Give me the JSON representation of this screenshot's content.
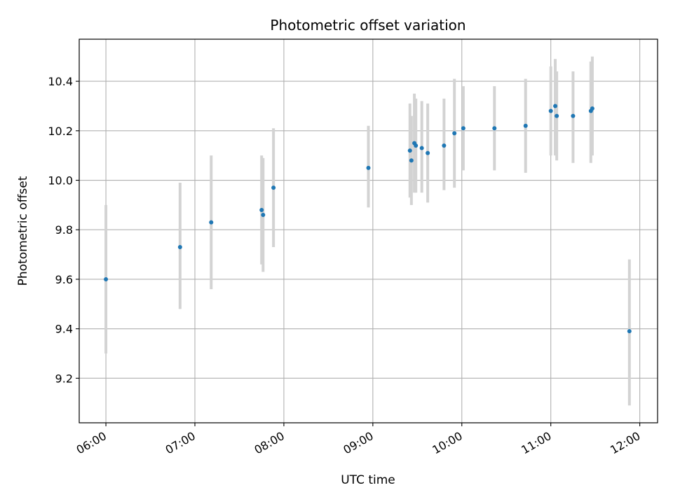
{
  "chart_data": {
    "type": "scatter",
    "title": "Photometric offset variation",
    "xlabel": "UTC time",
    "ylabel": "Photometric offset",
    "xlim": [
      "05:42",
      "12:12"
    ],
    "ylim": [
      9.02,
      10.57
    ],
    "x_ticks": [
      "06:00",
      "07:00",
      "08:00",
      "09:00",
      "10:00",
      "11:00",
      "12:00"
    ],
    "y_ticks": [
      9.2,
      9.4,
      9.6,
      9.8,
      10.0,
      10.2,
      10.4
    ],
    "grid": true,
    "colors": {
      "point": "#1f77b4",
      "errorbar": "#d3d3d3",
      "grid": "#b0b0b0"
    },
    "points": [
      {
        "x": "06:00",
        "y": 9.6,
        "err_low": 9.3,
        "err_high": 9.9
      },
      {
        "x": "06:50",
        "y": 9.73,
        "err_low": 9.48,
        "err_high": 9.99
      },
      {
        "x": "07:11",
        "y": 9.83,
        "err_low": 9.56,
        "err_high": 10.1
      },
      {
        "x": "07:45",
        "y": 9.88,
        "err_low": 9.66,
        "err_high": 10.1
      },
      {
        "x": "07:46",
        "y": 9.86,
        "err_low": 9.63,
        "err_high": 10.09
      },
      {
        "x": "07:53",
        "y": 9.97,
        "err_low": 9.73,
        "err_high": 10.21
      },
      {
        "x": "08:57",
        "y": 10.05,
        "err_low": 9.89,
        "err_high": 10.22
      },
      {
        "x": "09:25",
        "y": 10.12,
        "err_low": 9.93,
        "err_high": 10.31
      },
      {
        "x": "09:26",
        "y": 10.08,
        "err_low": 9.9,
        "err_high": 10.26
      },
      {
        "x": "09:28",
        "y": 10.15,
        "err_low": 9.95,
        "err_high": 10.35
      },
      {
        "x": "09:29",
        "y": 10.14,
        "err_low": 9.95,
        "err_high": 10.33
      },
      {
        "x": "09:33",
        "y": 10.13,
        "err_low": 9.95,
        "err_high": 10.32
      },
      {
        "x": "09:37",
        "y": 10.11,
        "err_low": 9.91,
        "err_high": 10.31
      },
      {
        "x": "09:48",
        "y": 10.14,
        "err_low": 9.96,
        "err_high": 10.33
      },
      {
        "x": "09:55",
        "y": 10.19,
        "err_low": 9.97,
        "err_high": 10.41
      },
      {
        "x": "10:01",
        "y": 10.21,
        "err_low": 10.04,
        "err_high": 10.38
      },
      {
        "x": "10:22",
        "y": 10.21,
        "err_low": 10.04,
        "err_high": 10.38
      },
      {
        "x": "10:43",
        "y": 10.22,
        "err_low": 10.03,
        "err_high": 10.41
      },
      {
        "x": "11:00",
        "y": 10.28,
        "err_low": 10.1,
        "err_high": 10.46
      },
      {
        "x": "11:03",
        "y": 10.3,
        "err_low": 10.1,
        "err_high": 10.49
      },
      {
        "x": "11:04",
        "y": 10.26,
        "err_low": 10.08,
        "err_high": 10.44
      },
      {
        "x": "11:15",
        "y": 10.26,
        "err_low": 10.07,
        "err_high": 10.44
      },
      {
        "x": "11:27",
        "y": 10.28,
        "err_low": 10.07,
        "err_high": 10.48
      },
      {
        "x": "11:28",
        "y": 10.29,
        "err_low": 10.1,
        "err_high": 10.5
      },
      {
        "x": "11:53",
        "y": 9.39,
        "err_low": 9.09,
        "err_high": 9.68
      }
    ]
  }
}
